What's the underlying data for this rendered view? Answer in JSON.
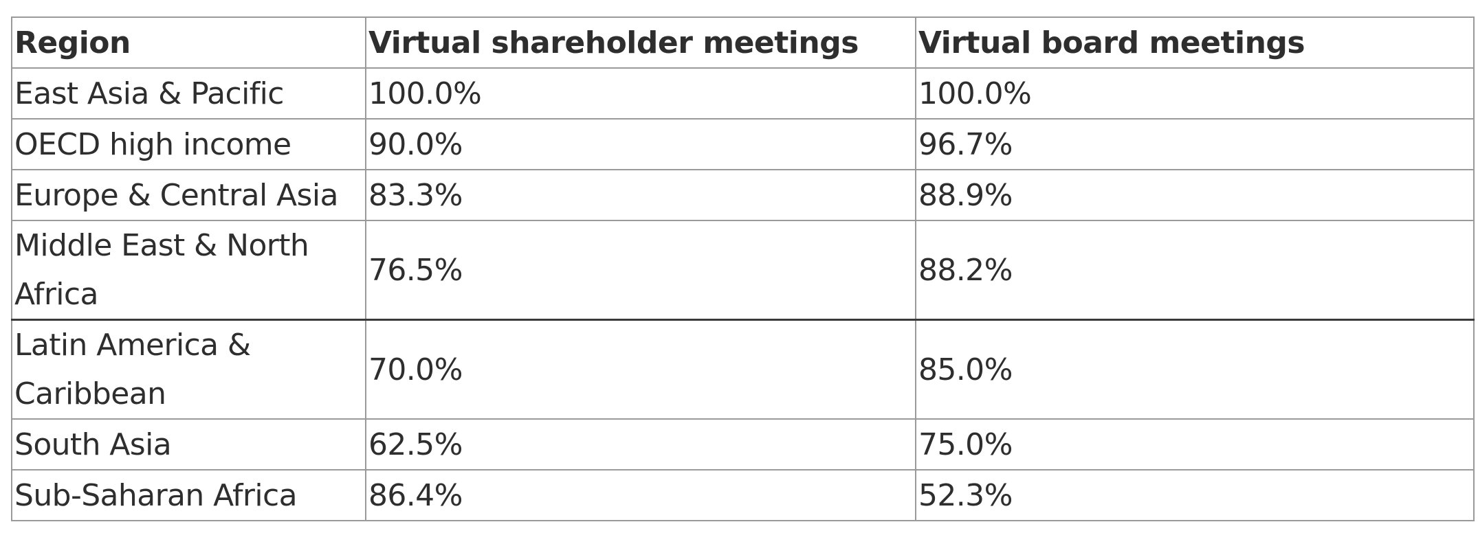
{
  "table": {
    "headers": [
      "Region",
      "Virtual shareholder meetings",
      "Virtual board meetings"
    ],
    "rows": [
      {
        "region": "East Asia & Pacific",
        "shareholder": "100.0%",
        "board": "100.0%"
      },
      {
        "region": "OECD high income",
        "shareholder": "90.0%",
        "board": "96.7%"
      },
      {
        "region": "Europe & Central Asia",
        "shareholder": "83.3%",
        "board": "88.9%"
      },
      {
        "region": "Middle East & North Africa",
        "shareholder": "76.5%",
        "board": "88.2%"
      },
      {
        "region": "Latin America & Caribbean",
        "shareholder": "70.0%",
        "board": "85.0%"
      },
      {
        "region": "South Asia",
        "shareholder": "62.5%",
        "board": "75.0%"
      },
      {
        "region": "Sub-Saharan Africa",
        "shareholder": "86.4%",
        "board": "52.3%"
      }
    ]
  }
}
